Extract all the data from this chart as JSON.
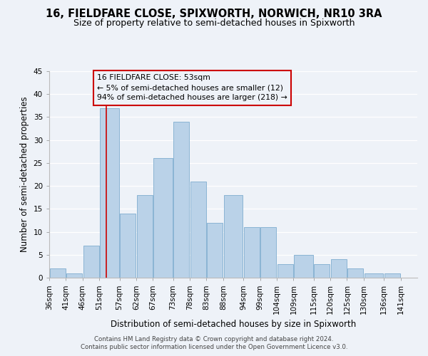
{
  "title": "16, FIELDFARE CLOSE, SPIXWORTH, NORWICH, NR10 3RA",
  "subtitle": "Size of property relative to semi-detached houses in Spixworth",
  "xlabel": "Distribution of semi-detached houses by size in Spixworth",
  "ylabel": "Number of semi-detached properties",
  "footnote1": "Contains HM Land Registry data © Crown copyright and database right 2024.",
  "footnote2": "Contains public sector information licensed under the Open Government Licence v3.0.",
  "annotation_line1": "16 FIELDFARE CLOSE: 53sqm",
  "annotation_line2": "← 5% of semi-detached houses are smaller (12)",
  "annotation_line3": "94% of semi-detached houses are larger (218) →",
  "bar_left_edges": [
    36,
    41,
    46,
    51,
    57,
    62,
    67,
    73,
    78,
    83,
    88,
    94,
    99,
    104,
    109,
    115,
    120,
    125,
    130,
    136
  ],
  "bar_widths": [
    5,
    5,
    5,
    6,
    5,
    5,
    6,
    5,
    5,
    5,
    6,
    5,
    5,
    5,
    6,
    5,
    5,
    5,
    6,
    5
  ],
  "bar_heights": [
    2,
    1,
    7,
    37,
    14,
    18,
    26,
    34,
    21,
    12,
    18,
    11,
    11,
    3,
    5,
    3,
    4,
    2,
    1,
    1
  ],
  "tick_labels": [
    "36sqm",
    "41sqm",
    "46sqm",
    "51sqm",
    "57sqm",
    "62sqm",
    "67sqm",
    "73sqm",
    "78sqm",
    "83sqm",
    "88sqm",
    "94sqm",
    "99sqm",
    "104sqm",
    "109sqm",
    "115sqm",
    "120sqm",
    "125sqm",
    "130sqm",
    "136sqm",
    "141sqm"
  ],
  "tick_positions": [
    36,
    41,
    46,
    51,
    57,
    62,
    67,
    73,
    78,
    83,
    88,
    94,
    99,
    104,
    109,
    115,
    120,
    125,
    130,
    136,
    141
  ],
  "bar_color": "#bad2e8",
  "bar_edge_color": "#8ab4d4",
  "bar_edge_width": 0.7,
  "property_line_x": 53,
  "property_line_color": "#cc0000",
  "annotation_box_color": "#cc0000",
  "ylim": [
    0,
    45
  ],
  "xlim": [
    36,
    146
  ],
  "yticks": [
    0,
    5,
    10,
    15,
    20,
    25,
    30,
    35,
    40,
    45
  ],
  "background_color": "#eef2f8",
  "grid_color": "#ffffff",
  "title_fontsize": 10.5,
  "subtitle_fontsize": 9,
  "axis_label_fontsize": 8.5,
  "tick_fontsize": 7.5,
  "annotation_fontsize": 7.8,
  "footnote_fontsize": 6.2
}
